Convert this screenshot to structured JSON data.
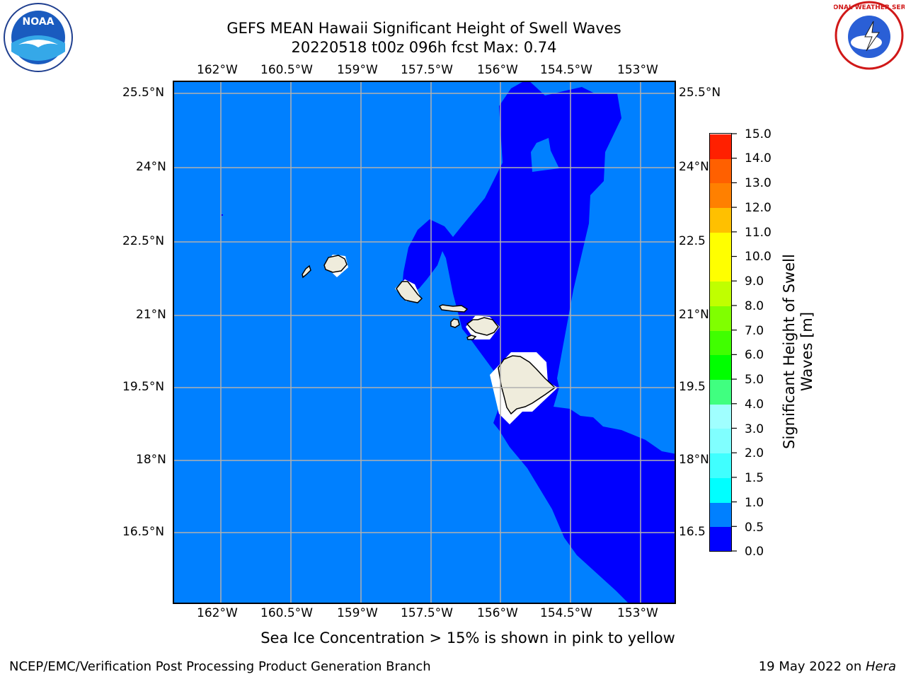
{
  "title": {
    "line1": "GEFS MEAN Hawaii Significant Height of Swell Waves",
    "line2": "20220518 t00z 096h fcst   Max: 0.74"
  },
  "map": {
    "lon_labels": [
      "162°W",
      "160.5°W",
      "159°W",
      "157.5°W",
      "156°W",
      "154.5°W",
      "153°W"
    ],
    "lat_labels": [
      "25.5°N",
      "24°N",
      "22.5°N",
      "21°N",
      "19.5°N",
      "18°N",
      "16.5°N"
    ],
    "lat_labels_right": [
      "25.5°N",
      "24°N",
      "22.5",
      "21°N",
      "19.5",
      "18°N",
      "16.5"
    ],
    "ocean_color": "#0080ff",
    "low_swell_color": "#0000ff",
    "land_color": "#efecdc",
    "note": "Sea Ice Concentration > 15% is shown in pink to yellow"
  },
  "colorbar": {
    "title_line1": "Significant Height of Swell",
    "title_line2": "Waves [m]",
    "ticks": [
      "0.0",
      "0.5",
      "1.0",
      "1.5",
      "2.0",
      "3.0",
      "4.0",
      "5.0",
      "6.0",
      "7.0",
      "8.0",
      "9.0",
      "10.0",
      "11.0",
      "12.0",
      "13.0",
      "14.0",
      "15.0"
    ],
    "colors": [
      "#0000ff",
      "#0080ff",
      "#00ffff",
      "#40ffff",
      "#80ffff",
      "#a0ffff",
      "#40ff80",
      "#00ff00",
      "#40ff00",
      "#80ff00",
      "#c0ff00",
      "#ffff00",
      "#ffff00",
      "#ffc000",
      "#ff8000",
      "#ff6000",
      "#ff2000",
      "#ff0000"
    ]
  },
  "logos": {
    "noaa_text": "NOAA",
    "nws_text": "NATIONAL WEATHER SERVICE"
  },
  "footer": {
    "left": "NCEP/EMC/Verification Post Processing Product Generation Branch",
    "right_prefix": "19 May 2022 on ",
    "right_italic": "Hera"
  }
}
